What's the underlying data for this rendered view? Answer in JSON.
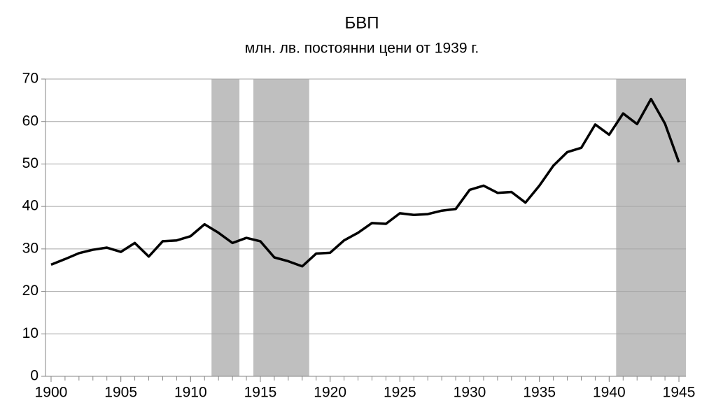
{
  "chart_data": {
    "type": "line",
    "title": "БВП",
    "subtitle": "млн. лв. постоянни цени от 1939 г.",
    "x": [
      1900,
      1901,
      1902,
      1903,
      1904,
      1905,
      1906,
      1907,
      1908,
      1909,
      1910,
      1911,
      1912,
      1913,
      1914,
      1915,
      1916,
      1917,
      1918,
      1919,
      1920,
      1921,
      1922,
      1923,
      1924,
      1925,
      1926,
      1927,
      1928,
      1929,
      1930,
      1931,
      1932,
      1933,
      1934,
      1935,
      1936,
      1937,
      1938,
      1939,
      1940,
      1941,
      1942,
      1943,
      1944,
      1945
    ],
    "series": [
      {
        "color": "#000000",
        "values": [
          26.3,
          27.6,
          29.0,
          29.8,
          30.3,
          29.3,
          31.4,
          28.2,
          31.8,
          32.0,
          33.0,
          35.8,
          33.8,
          31.4,
          32.6,
          31.8,
          28.0,
          27.1,
          25.9,
          28.9,
          29.1,
          32.0,
          33.8,
          36.1,
          35.9,
          38.4,
          38.0,
          38.2,
          39.0,
          39.4,
          43.9,
          44.9,
          43.2,
          43.4,
          40.9,
          44.9,
          49.6,
          52.8,
          53.8,
          59.3,
          56.9,
          61.9,
          59.4,
          65.3,
          59.5,
          50.4
        ]
      }
    ],
    "shaded": [
      [
        1911.5,
        1913.5
      ],
      [
        1914.5,
        1918.5
      ],
      [
        1940.5,
        1945.5
      ]
    ],
    "shade_color": "#bfbfbf",
    "xlim": [
      1899.6,
      1945.5
    ],
    "xticks": [
      1900,
      1905,
      1910,
      1915,
      1920,
      1925,
      1930,
      1935,
      1940,
      1945
    ],
    "ylim": [
      0,
      70
    ],
    "yticks": [
      0,
      10,
      20,
      30,
      40,
      50,
      60,
      70
    ],
    "grid": true
  }
}
